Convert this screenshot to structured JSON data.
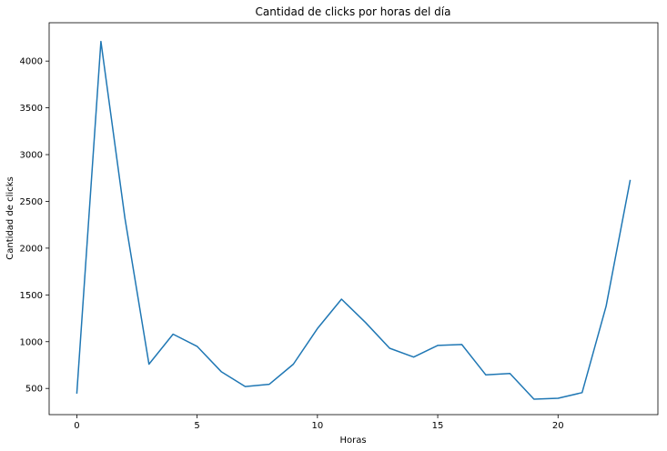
{
  "chart_data": {
    "type": "line",
    "title": "Cantidad de clicks por horas del día",
    "xlabel": "Horas",
    "ylabel": "Cantidad de clicks",
    "xlim": [
      -1.15,
      24.15
    ],
    "ylim": [
      220,
      4410
    ],
    "xticks": [
      0,
      5,
      10,
      15,
      20
    ],
    "yticks": [
      500,
      1000,
      1500,
      2000,
      2500,
      3000,
      3500,
      4000
    ],
    "grid": false,
    "line_color": "#1f77b4",
    "series": [
      {
        "x": [
          0,
          1,
          2,
          3,
          4,
          5,
          6,
          7,
          8,
          9,
          10,
          11,
          12,
          13,
          14,
          15,
          16,
          17,
          18,
          19,
          20,
          21,
          22,
          23
        ],
        "values": [
          445,
          4210,
          2320,
          760,
          1080,
          950,
          680,
          520,
          545,
          760,
          1140,
          1455,
          1205,
          930,
          835,
          960,
          970,
          645,
          660,
          385,
          395,
          455,
          1380,
          2730
        ]
      }
    ]
  }
}
